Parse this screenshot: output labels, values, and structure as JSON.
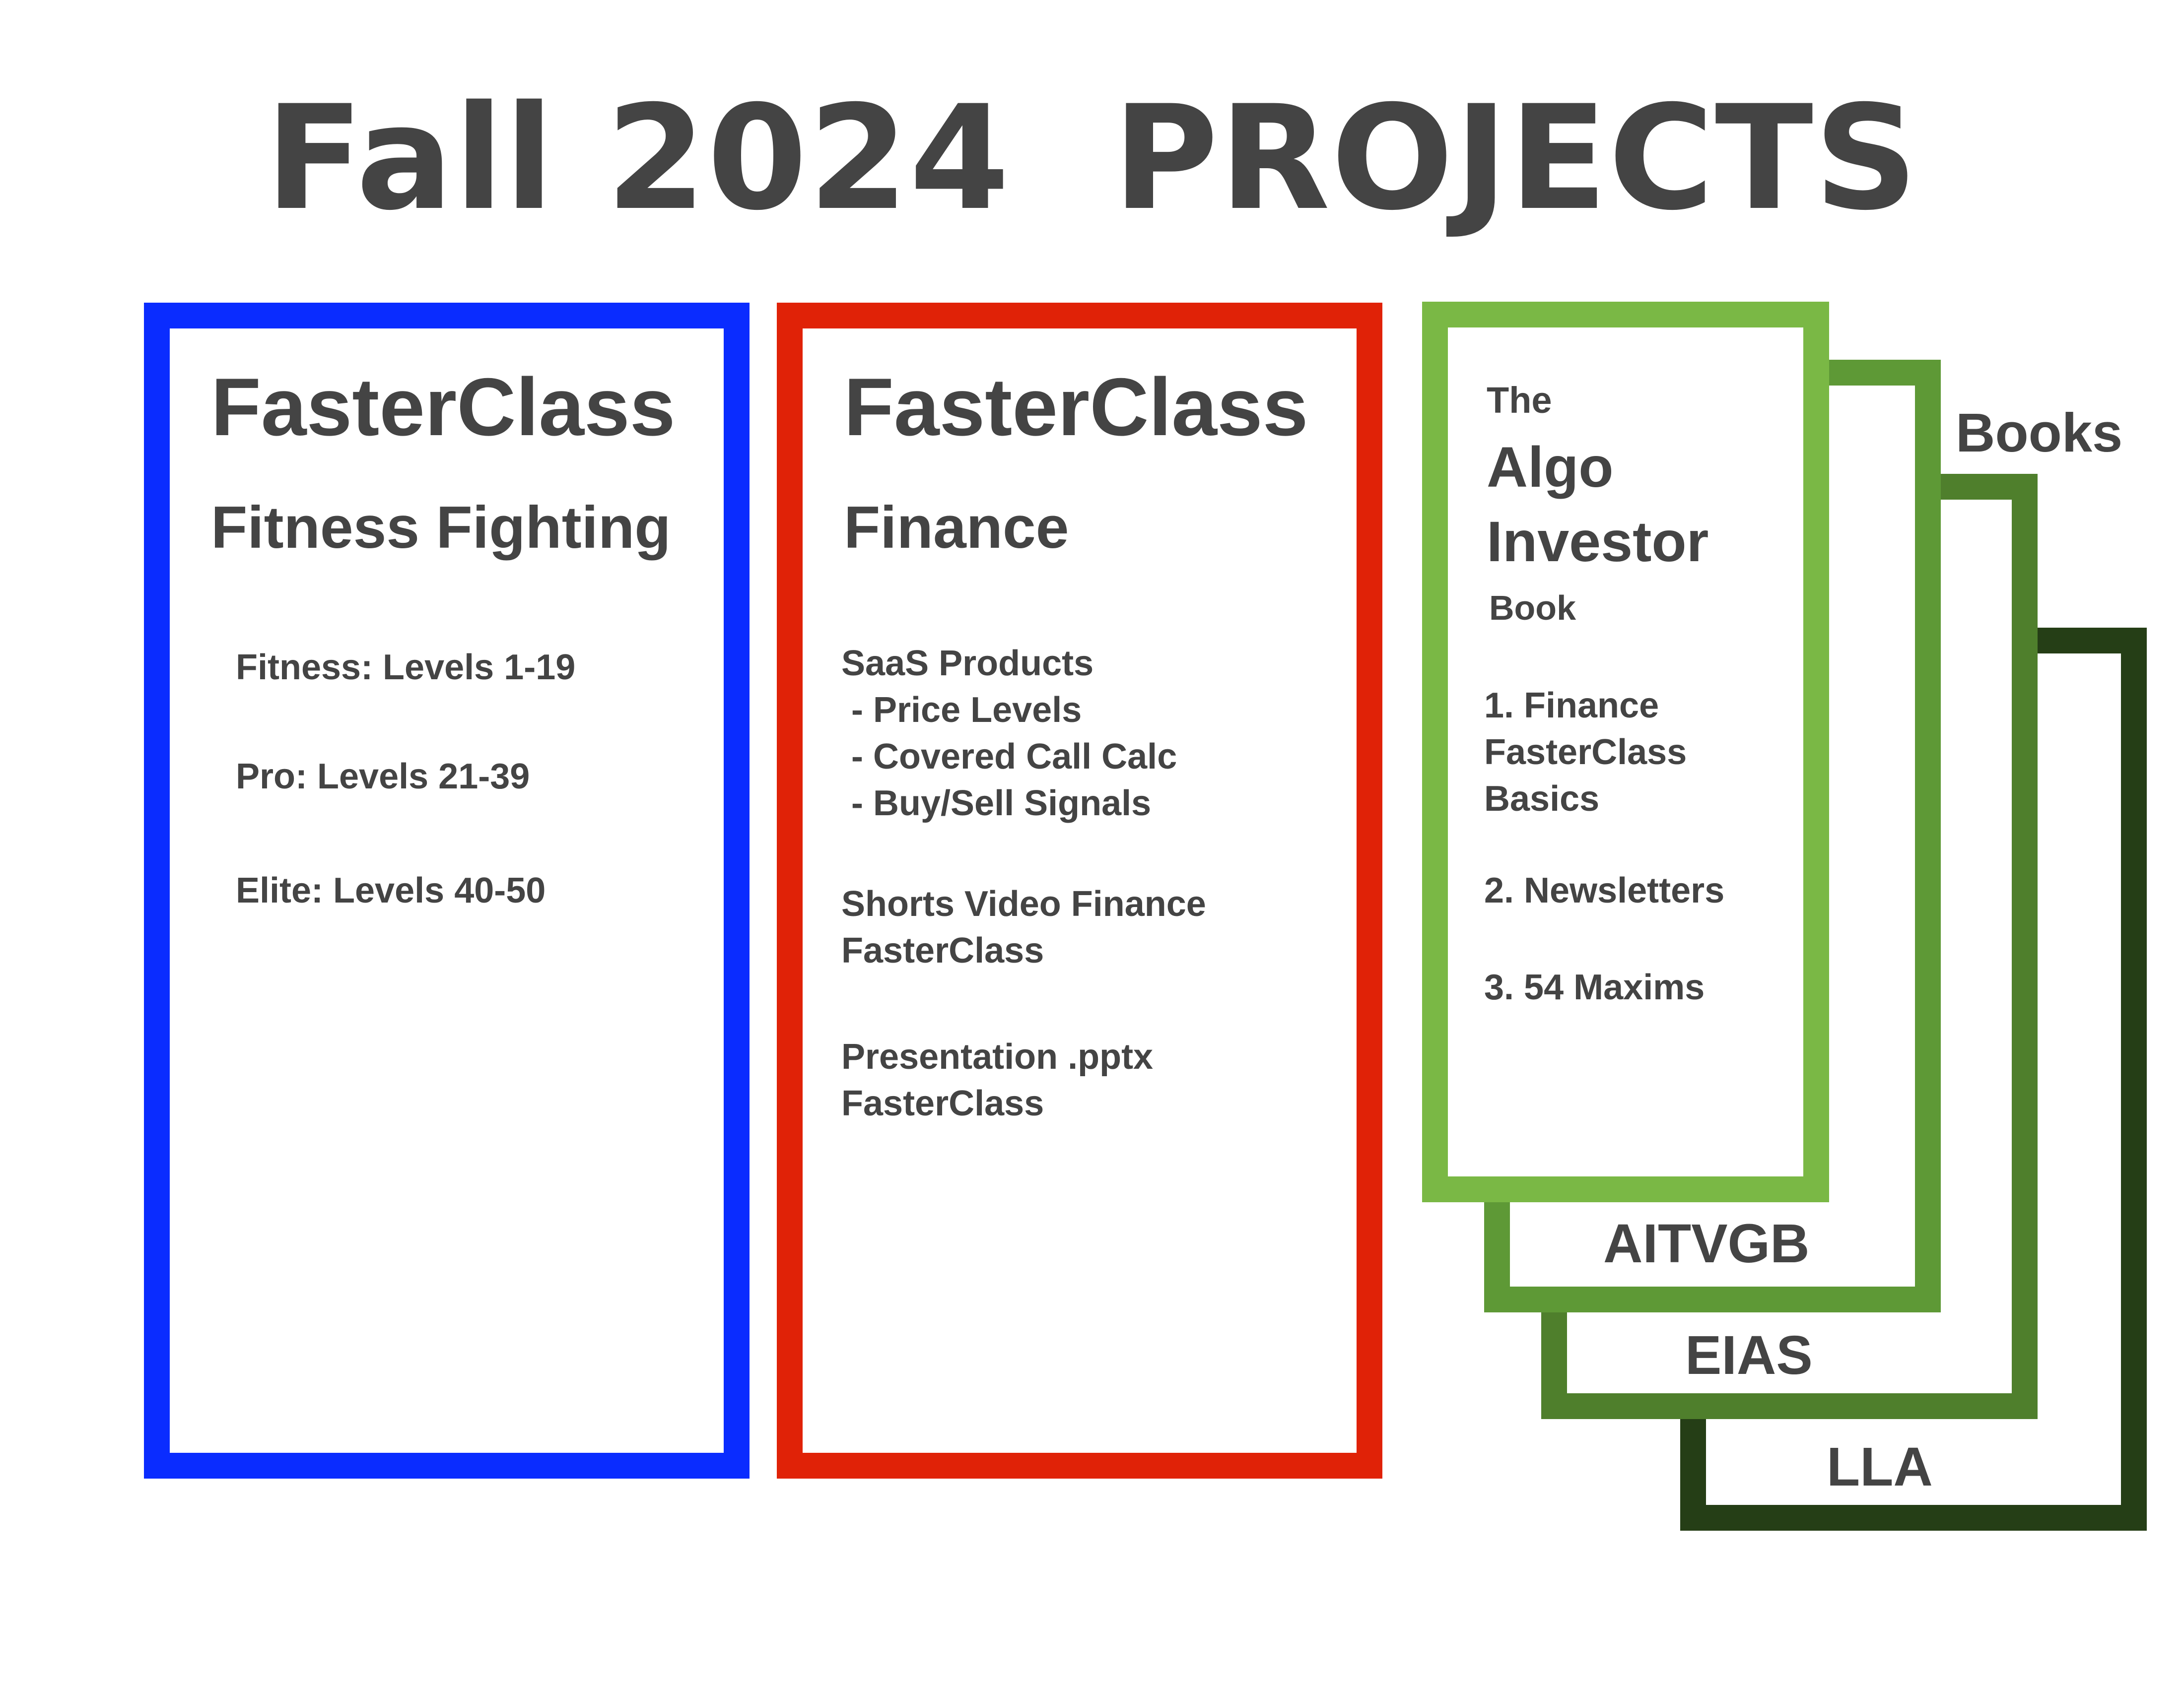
{
  "title": "Fall 2024  PROJECTS",
  "colors": {
    "text": "#444444",
    "blue": "#0a2cff",
    "red": "#e02207",
    "green_light": "#7ab845",
    "green_mid": "#5e9936",
    "green_dark_mid": "#4f7f2c",
    "green_dark": "#253e16"
  },
  "card1": {
    "title": "FasterClass",
    "subtitle": "Fitness Fighting",
    "items": [
      "Fitness: Levels 1-19",
      "Pro: Levels 21-39",
      "Elite: Levels 40-50"
    ]
  },
  "card2": {
    "title": "FasterClass",
    "subtitle": "Finance",
    "saas": [
      "SaaS Products",
      " - Price Levels",
      " - Covered Call Calc",
      " - Buy/Sell Signals"
    ],
    "shorts": [
      "Shorts Video Finance",
      "FasterClass"
    ],
    "presentation": [
      "Presentation .pptx",
      "FasterClass"
    ]
  },
  "books": {
    "label": "Books",
    "front": {
      "pre": "The",
      "title_line1": "Algo",
      "title_line2": "Investor",
      "post": "Book",
      "item1": [
        "1. Finance",
        "FasterClass",
        "Basics"
      ],
      "item2": "2. Newsletters",
      "item3": "3. 54 Maxims"
    },
    "stack": [
      "AITVGB",
      "EIAS",
      "LLA"
    ]
  }
}
